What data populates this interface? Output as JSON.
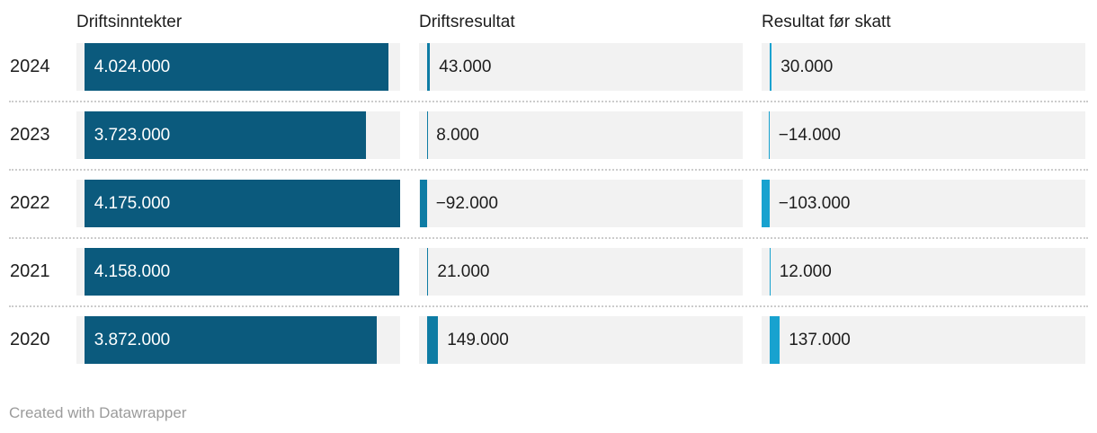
{
  "chart_data": {
    "type": "bar",
    "orientation": "horizontal",
    "title": "",
    "categories": [
      "2024",
      "2023",
      "2022",
      "2021",
      "2020"
    ],
    "series": [
      {
        "name": "Driftsinntekter",
        "values": [
          4024000,
          3723000,
          4175000,
          4158000,
          3872000
        ],
        "labels": [
          "4.024.000",
          "3.723.000",
          "4.175.000",
          "4.158.000",
          "3.872.000"
        ],
        "color": "#0b5a7d",
        "label_position": "inside"
      },
      {
        "name": "Driftsresultat",
        "values": [
          43000,
          8000,
          -92000,
          21000,
          149000
        ],
        "labels": [
          "43.000",
          "8.000",
          "−92.000",
          "21.000",
          "149.000"
        ],
        "color": "#0e7ca4",
        "label_position": "outside"
      },
      {
        "name": "Resultat før skatt",
        "values": [
          30000,
          -14000,
          -103000,
          12000,
          137000
        ],
        "labels": [
          "30.000",
          "−14.000",
          "−103.000",
          "12.000",
          "137.000"
        ],
        "color": "#18a2cf",
        "label_position": "outside"
      }
    ],
    "axis": {
      "shared_scale": true,
      "min": -103000,
      "max": 4175000
    },
    "grid": false,
    "legend": "none"
  },
  "layout_colors": {
    "cell_background": "#f2f2f2",
    "text": "#1d1d1d",
    "bar_label_inside": "#ffffff",
    "separator": "#cccccc",
    "attribution": "#9b9b9b"
  },
  "footer": {
    "attribution_prefix": "Created with ",
    "attribution_link": "Datawrapper"
  }
}
